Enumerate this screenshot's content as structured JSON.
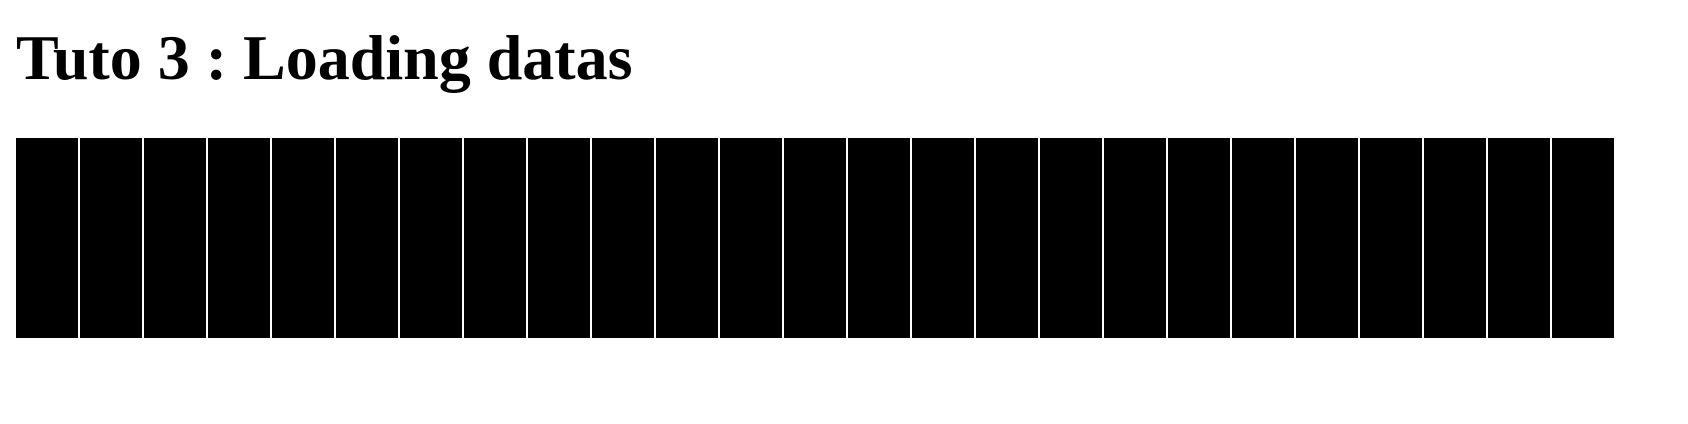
{
  "page": {
    "title": "Tuto 3 : Loading datas"
  },
  "blocks": {
    "count": 25,
    "color": "#000000"
  }
}
